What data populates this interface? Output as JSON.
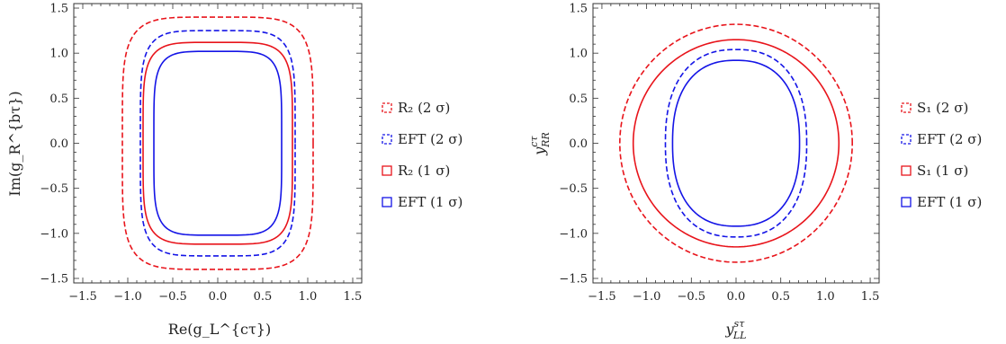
{
  "chart_data": [
    {
      "type": "contour",
      "xlabel": "Re(g_L^{cτ})",
      "ylabel": "Im(g_R^{bτ})",
      "xlim": [
        -1.6,
        1.6
      ],
      "ylim": [
        -1.55,
        1.55
      ],
      "xticks": [
        "−1.5",
        "−1.0",
        "−0.5",
        "0.0",
        "0.5",
        "1.0",
        "1.5"
      ],
      "yticks": [
        "−1.5",
        "−1.0",
        "−0.5",
        "0.0",
        "0.5",
        "1.0",
        "1.5"
      ],
      "grid": false,
      "legend_position": "right",
      "series": [
        {
          "name": "R₂ (2 σ)",
          "color": "#e8141b",
          "dash": true,
          "contour": {
            "cx": 0,
            "cy": 0,
            "rx": 1.06,
            "ry": 1.4,
            "n": 5
          }
        },
        {
          "name": "EFT (2 σ)",
          "color": "#1414e6",
          "dash": true,
          "contour": {
            "cx": 0,
            "cy": 0,
            "rx": 0.86,
            "ry": 1.25,
            "n": 5
          }
        },
        {
          "name": "R₂ (1 σ)",
          "color": "#e8141b",
          "dash": false,
          "contour": {
            "cx": 0,
            "cy": 0,
            "rx": 0.83,
            "ry": 1.12,
            "n": 5
          }
        },
        {
          "name": "EFT (1 σ)",
          "color": "#1414e6",
          "dash": false,
          "contour": {
            "cx": 0,
            "cy": 0,
            "rx": 0.71,
            "ry": 1.02,
            "n": 5
          }
        }
      ]
    },
    {
      "type": "contour",
      "xlabel": "y_{LL}^{sτ}",
      "ylabel": "y_{RR}^{cτ}",
      "xlim": [
        -1.6,
        1.6
      ],
      "ylim": [
        -1.55,
        1.55
      ],
      "xticks": [
        "−1.5",
        "−1.0",
        "−0.5",
        "0.0",
        "0.5",
        "1.0",
        "1.5"
      ],
      "yticks": [
        "−1.5",
        "−1.0",
        "−0.5",
        "0.0",
        "0.5",
        "1.0",
        "1.5"
      ],
      "grid": false,
      "legend_position": "right",
      "series": [
        {
          "name": "S₁ (2 σ)",
          "color": "#e8141b",
          "dash": true,
          "contour": {
            "cx": 0,
            "cy": 0,
            "rx": 1.3,
            "ry": 1.32,
            "n": 2
          }
        },
        {
          "name": "EFT (2 σ)",
          "color": "#1414e6",
          "dash": true,
          "contour": {
            "cx": 0,
            "cy": 0,
            "rx": 0.79,
            "ry": 1.04,
            "n": 2.4
          }
        },
        {
          "name": "S₁ (1 σ)",
          "color": "#e8141b",
          "dash": false,
          "contour": {
            "cx": 0,
            "cy": 0,
            "rx": 1.15,
            "ry": 1.15,
            "n": 2
          }
        },
        {
          "name": "EFT (1 σ)",
          "color": "#1414e6",
          "dash": false,
          "contour": {
            "cx": 0,
            "cy": 0,
            "rx": 0.71,
            "ry": 0.92,
            "n": 2.4
          }
        }
      ]
    }
  ]
}
